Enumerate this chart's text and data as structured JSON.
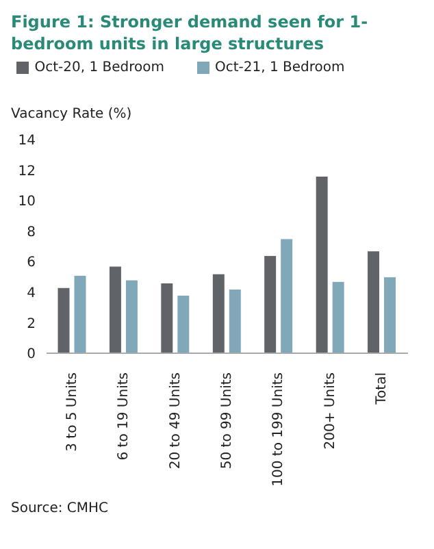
{
  "chart_data": {
    "type": "bar",
    "title": "Figure 1: Stronger demand seen for 1-bedroom units in large structures",
    "ylabel": "Vacancy Rate (%)",
    "categories": [
      "3 to 5 Units",
      "6 to 19 Units",
      "20 to 49 Units",
      "50 to 99 Units",
      "100 to 199 Units",
      "200+ Units",
      "Total"
    ],
    "series": [
      {
        "name": "Oct-20, 1 Bedroom",
        "color": "#606368",
        "values": [
          4.3,
          5.7,
          4.6,
          5.2,
          6.4,
          11.6,
          6.7
        ]
      },
      {
        "name": "Oct-21, 1 Bedroom",
        "color": "#80a8b9",
        "values": [
          5.1,
          4.8,
          3.8,
          4.2,
          7.5,
          4.7,
          5.0
        ]
      }
    ],
    "ylim": [
      0,
      14
    ],
    "yticks": [
      0,
      2,
      4,
      6,
      8,
      10,
      12,
      14
    ],
    "grid": false,
    "legend": "top",
    "annotations": [
      "Source: CMHC"
    ]
  }
}
